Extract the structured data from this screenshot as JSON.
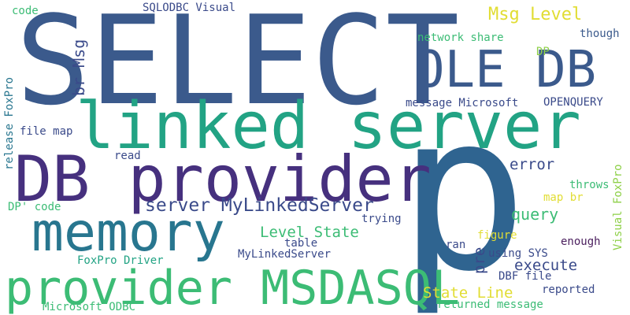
{
  "palette": {
    "dark_blue": "#3b5a8c",
    "steel_blue": "#2f6490",
    "purple_dark": "#46307e",
    "teal": "#22a384",
    "teal_blue": "#28768f",
    "green": "#3cbc75",
    "light_green": "#8ed048",
    "yellow": "#e1dd33",
    "indigo": "#3a4a8a",
    "plum": "#4b1f5e"
  },
  "words": [
    "SELECT",
    "p",
    "linked server",
    "DB provider",
    "memory",
    "provider MSDASQL",
    "OLE DB",
    "server MyLinkedServer",
    "Msg Level",
    "br Msg",
    "Level State",
    "query",
    "error",
    "execute",
    "pre",
    "State Line",
    "release FoxPro",
    "code",
    "SQLODBC Visual",
    "network share",
    "though",
    "DP",
    "message Microsoft",
    "OPENQUERY",
    "file map",
    "read",
    "DP' code",
    "table",
    "trying",
    "MyLinkedServer",
    "FoxPro Driver",
    "Microsoft ODBC",
    "ran",
    "using SYS",
    "figure",
    "DBF file",
    "reported",
    "returned message",
    "enough",
    "throws",
    "map br",
    "Visual FoxPro"
  ]
}
